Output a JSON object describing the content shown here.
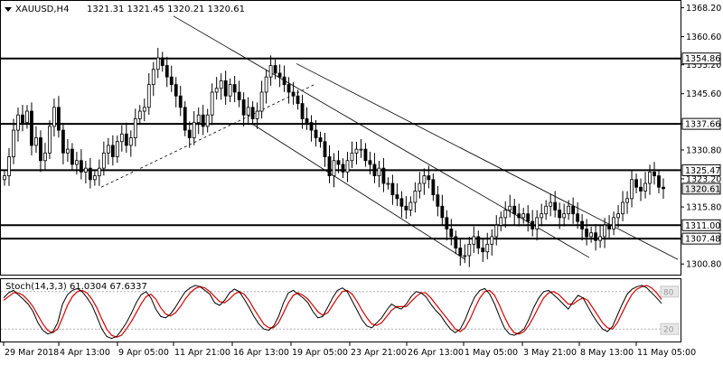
{
  "header": {
    "symbol": "XAUUSD,H4",
    "ohlc": "1321.31 1321.45 1320.21 1320.61"
  },
  "stoch_header": "Stoch(14,3,3) 61.0304 67.6337",
  "colors": {
    "candle": "#000000",
    "level": "#000000",
    "stoch_main": "#000000",
    "stoch_signal": "#e00000",
    "background": "#ffffff",
    "label_bg": "#ffffff",
    "current_price_bg": "#e8e8e8"
  },
  "chart_data": [
    {
      "type": "candlestick",
      "instrument": "XAUUSD",
      "timeframe": "H4",
      "ylim": [
        1298.0,
        1370.0
      ],
      "y_ticks": [
        "1368.20",
        "1360.60",
        "1353.20",
        "1345.60",
        "1337.66",
        "1330.80",
        "1323.20",
        "1315.80",
        "1308.20",
        "1300.80"
      ],
      "x_ticks": [
        "29 Mar 2018",
        "4 Apr 13:00",
        "9 Apr 05:00",
        "11 Apr 21:00",
        "16 Apr 13:00",
        "19 Apr 05:00",
        "23 Apr 21:00",
        "26 Apr 13:00",
        "1 May 05:00",
        "3 May 21:00",
        "8 May 13:00",
        "11 May 05:00"
      ],
      "horizontal_levels": [
        "1354.86",
        "1337.66",
        "1325.47",
        "1311.00",
        "1307.48"
      ],
      "current_price": "1320.61",
      "closes": [
        1324,
        1329,
        1336,
        1340,
        1338,
        1341,
        1332,
        1334,
        1328,
        1330,
        1337,
        1342,
        1336,
        1330,
        1331,
        1327,
        1328,
        1325,
        1326,
        1323,
        1324,
        1326,
        1330,
        1332,
        1329,
        1333,
        1335,
        1332,
        1334,
        1339,
        1341,
        1342,
        1348,
        1352,
        1355,
        1353,
        1350,
        1348,
        1345,
        1342,
        1336,
        1334,
        1338,
        1340,
        1337,
        1340,
        1346,
        1347,
        1349,
        1345,
        1348,
        1346,
        1344,
        1340,
        1342,
        1339,
        1341,
        1346,
        1350,
        1353,
        1351,
        1350,
        1348,
        1346,
        1345,
        1343,
        1339,
        1338,
        1336,
        1334,
        1333,
        1329,
        1324,
        1328,
        1327,
        1325,
        1328,
        1330,
        1331,
        1331,
        1328,
        1327,
        1324,
        1326,
        1322,
        1322,
        1319,
        1318,
        1316,
        1315,
        1317,
        1320,
        1322,
        1324,
        1323,
        1319,
        1316,
        1313,
        1310,
        1308,
        1305,
        1303,
        1303,
        1306,
        1308,
        1305,
        1304,
        1306,
        1308,
        1311,
        1313,
        1315,
        1316,
        1314,
        1313,
        1314,
        1312,
        1310,
        1313,
        1314,
        1316,
        1317,
        1315,
        1313,
        1314,
        1316,
        1314,
        1312,
        1310,
        1308,
        1309,
        1307,
        1308,
        1311,
        1310,
        1313,
        1314,
        1317,
        1318,
        1323,
        1321,
        1320,
        1322,
        1325,
        1324,
        1321,
        1320.61
      ],
      "series": [
        {
          "name": "Stoch(14,3,3) main",
          "last": 61.0304
        },
        {
          "name": "Stoch(14,3,3) signal",
          "last": 67.6337
        }
      ]
    },
    {
      "type": "line",
      "title": "Stoch(14,3,3) 61.0304 67.6337",
      "ylim": [
        0,
        100
      ],
      "y_ticks": [
        "80",
        "20"
      ],
      "main": [
        70,
        78,
        82,
        75,
        68,
        60,
        48,
        30,
        18,
        12,
        15,
        30,
        60,
        75,
        82,
        85,
        80,
        70,
        58,
        40,
        20,
        8,
        5,
        8,
        18,
        30,
        45,
        62,
        75,
        80,
        70,
        52,
        40,
        38,
        44,
        55,
        68,
        80,
        86,
        90,
        88,
        82,
        76,
        62,
        58,
        66,
        78,
        84,
        80,
        68,
        55,
        40,
        28,
        20,
        18,
        25,
        40,
        62,
        78,
        82,
        76,
        70,
        62,
        48,
        38,
        40,
        55,
        70,
        82,
        86,
        80,
        65,
        50,
        35,
        25,
        22,
        30,
        38,
        50,
        60,
        55,
        52,
        60,
        72,
        80,
        78,
        72,
        60,
        50,
        42,
        30,
        20,
        14,
        20,
        35,
        55,
        72,
        82,
        85,
        76,
        60,
        40,
        22,
        12,
        10,
        14,
        20,
        36,
        55,
        70,
        80,
        82,
        75,
        68,
        60,
        52,
        64,
        74,
        70,
        56,
        42,
        30,
        20,
        16,
        24,
        42,
        60,
        76,
        84,
        88,
        90,
        86,
        78,
        70,
        61
      ],
      "signal": [
        66,
        72,
        78,
        78,
        74,
        66,
        56,
        42,
        28,
        18,
        14,
        20,
        38,
        58,
        72,
        80,
        82,
        78,
        68,
        54,
        36,
        20,
        10,
        7,
        10,
        20,
        32,
        46,
        60,
        72,
        76,
        68,
        54,
        44,
        41,
        46,
        56,
        68,
        78,
        85,
        88,
        86,
        80,
        72,
        64,
        62,
        68,
        76,
        80,
        76,
        66,
        52,
        40,
        28,
        22,
        22,
        30,
        46,
        62,
        74,
        78,
        74,
        68,
        58,
        48,
        42,
        46,
        58,
        70,
        80,
        82,
        76,
        64,
        50,
        38,
        28,
        26,
        30,
        40,
        50,
        56,
        56,
        56,
        64,
        72,
        78,
        78,
        70,
        60,
        50,
        40,
        30,
        20,
        16,
        22,
        36,
        54,
        70,
        80,
        82,
        74,
        58,
        40,
        24,
        14,
        12,
        16,
        26,
        40,
        56,
        70,
        78,
        80,
        76,
        68,
        60,
        60,
        66,
        70,
        66,
        54,
        42,
        30,
        22,
        20,
        30,
        46,
        62,
        76,
        84,
        88,
        90,
        86,
        78,
        67.6
      ]
    }
  ]
}
